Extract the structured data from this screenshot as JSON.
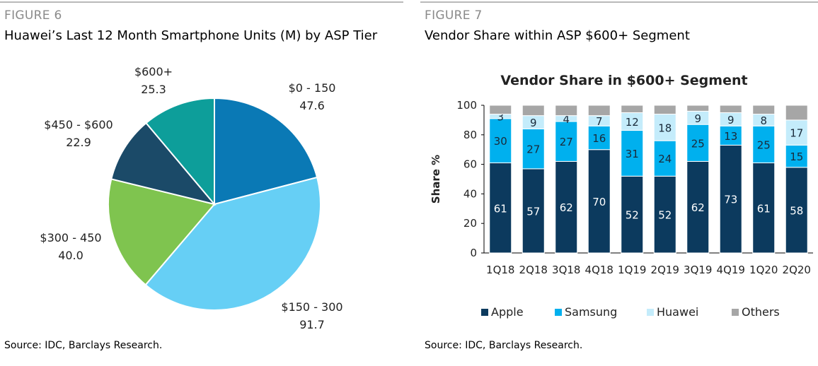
{
  "figure6": {
    "label": "FIGURE 6",
    "title": "Huawei’s Last 12 Month Smartphone Units (M) by ASP Tier",
    "source": "Source: IDC, Barclays Research."
  },
  "figure7": {
    "label": "FIGURE 7",
    "title": "Vendor Share within ASP $600+ Segment",
    "source": "Source: IDC, Barclays Research."
  },
  "chart_data": [
    {
      "type": "pie",
      "slices": [
        {
          "label": "$0 - 150",
          "value": 47.6,
          "value_text": "47.6",
          "color": "#0a79b5"
        },
        {
          "label": "$150 - 300",
          "value": 91.7,
          "value_text": "91.7",
          "color": "#66cff5"
        },
        {
          "label": "$300 - 450",
          "value": 40.0,
          "value_text": "40.0",
          "color": "#7fc44f"
        },
        {
          "label": "$450 - $600",
          "value": 22.9,
          "value_text": "22.9",
          "color": "#1b4a68"
        },
        {
          "label": "$600+",
          "value": 25.3,
          "value_text": "25.3",
          "color": "#0d9e9a"
        }
      ]
    },
    {
      "type": "bar",
      "stacked": true,
      "title": "Vendor Share in $600+ Segment",
      "ylabel": "Share %",
      "ylim": [
        0,
        100
      ],
      "yticks": [
        0,
        20,
        40,
        60,
        80,
        100
      ],
      "categories": [
        "1Q18",
        "2Q18",
        "3Q18",
        "4Q18",
        "1Q19",
        "2Q19",
        "3Q19",
        "4Q19",
        "1Q20",
        "2Q20"
      ],
      "series": [
        {
          "name": "Apple",
          "color": "#0c3a5e",
          "label_color": "#ffffff",
          "values": [
            61,
            57,
            62,
            70,
            52,
            52,
            62,
            73,
            61,
            58
          ]
        },
        {
          "name": "Samsung",
          "color": "#00b0ee",
          "label_color": "#1a2a3a",
          "values": [
            30,
            27,
            27,
            16,
            31,
            24,
            25,
            13,
            25,
            15
          ]
        },
        {
          "name": "Huawei",
          "color": "#c4ecfb",
          "label_color": "#1a2a3a",
          "values": [
            3,
            9,
            4,
            7,
            12,
            18,
            9,
            9,
            8,
            17
          ]
        },
        {
          "name": "Others",
          "color": "#a6a6a6",
          "label_color": "#1a2a3a",
          "values": [
            6,
            7,
            7,
            7,
            5,
            6,
            4,
            5,
            6,
            10
          ]
        }
      ],
      "legend": "bottom"
    }
  ]
}
